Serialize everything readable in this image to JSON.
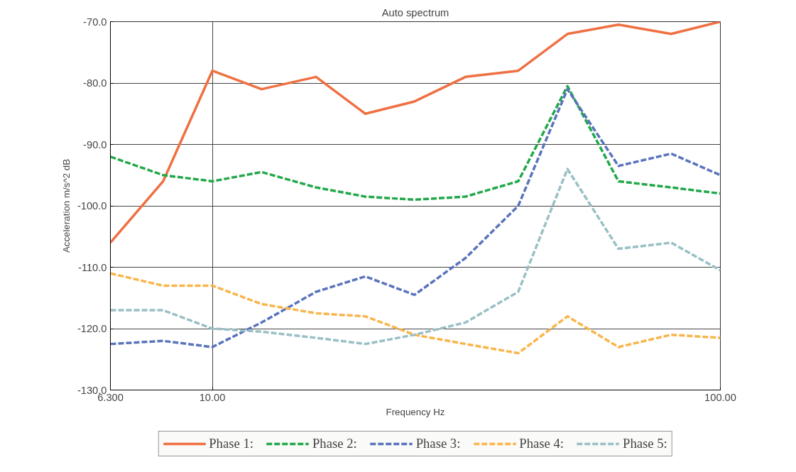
{
  "chart_data": {
    "type": "line",
    "title": "Auto spectrum",
    "xlabel": "Frequency Hz",
    "ylabel": "Acceleration m/s^2 dB",
    "x": [
      6.3,
      8,
      10,
      12.5,
      16,
      20,
      25,
      31.5,
      40,
      50,
      63,
      80,
      100
    ],
    "log": "x",
    "xlim": [
      6.3,
      100
    ],
    "ylim": [
      -130,
      -70
    ],
    "xticks": [
      {
        "value": 6.3,
        "label": "6.300"
      },
      {
        "value": 10,
        "label": "10.00"
      },
      {
        "value": 100,
        "label": "100.00"
      }
    ],
    "yticks": [
      {
        "value": -130,
        "label": "-130.0"
      },
      {
        "value": -120,
        "label": "-120.0"
      },
      {
        "value": -110,
        "label": "-110.0"
      },
      {
        "value": -100,
        "label": "-100.0"
      },
      {
        "value": -90,
        "label": "-90.0"
      },
      {
        "value": -80,
        "label": "-80.0"
      },
      {
        "value": -70,
        "label": "-70.0"
      }
    ],
    "grid": true,
    "legend": "bottom",
    "marker": "none",
    "series": [
      {
        "name": "Phase 1:",
        "color": "#ef7042",
        "line_style": "solid",
        "values": [
          -106,
          -96,
          -78,
          -81,
          -79,
          -85,
          -83,
          -79,
          -78,
          -72,
          -70.5,
          -72,
          -70
        ]
      },
      {
        "name": "Phase 2:",
        "color": "#22a84a",
        "line_style": "dashed",
        "values": [
          -92,
          -95,
          -96,
          -94.5,
          -97,
          -98.5,
          -99,
          -98.5,
          -96,
          -80.5,
          -96,
          -97,
          -98
        ]
      },
      {
        "name": "Phase 3:",
        "color": "#5a73bd",
        "line_style": "dashed",
        "values": [
          -122.5,
          -122,
          -123,
          -119,
          -114,
          -111.5,
          -114.5,
          -108.5,
          -100,
          -81,
          -93.5,
          -91.5,
          -95
        ]
      },
      {
        "name": "Phase 4:",
        "color": "#f9b54a",
        "line_style": "dashed",
        "values": [
          -111,
          -113,
          -113,
          -116,
          -117.5,
          -118,
          -121,
          -122.5,
          -124,
          -118,
          -123,
          -121,
          -121.5
        ]
      },
      {
        "name": "Phase 5:",
        "color": "#99c0c4",
        "line_style": "dashed",
        "values": [
          -117,
          -117,
          -120,
          -120.5,
          -121.5,
          -122.5,
          -121,
          -119,
          -114,
          -94,
          -107,
          -106,
          -110.5
        ]
      }
    ]
  }
}
